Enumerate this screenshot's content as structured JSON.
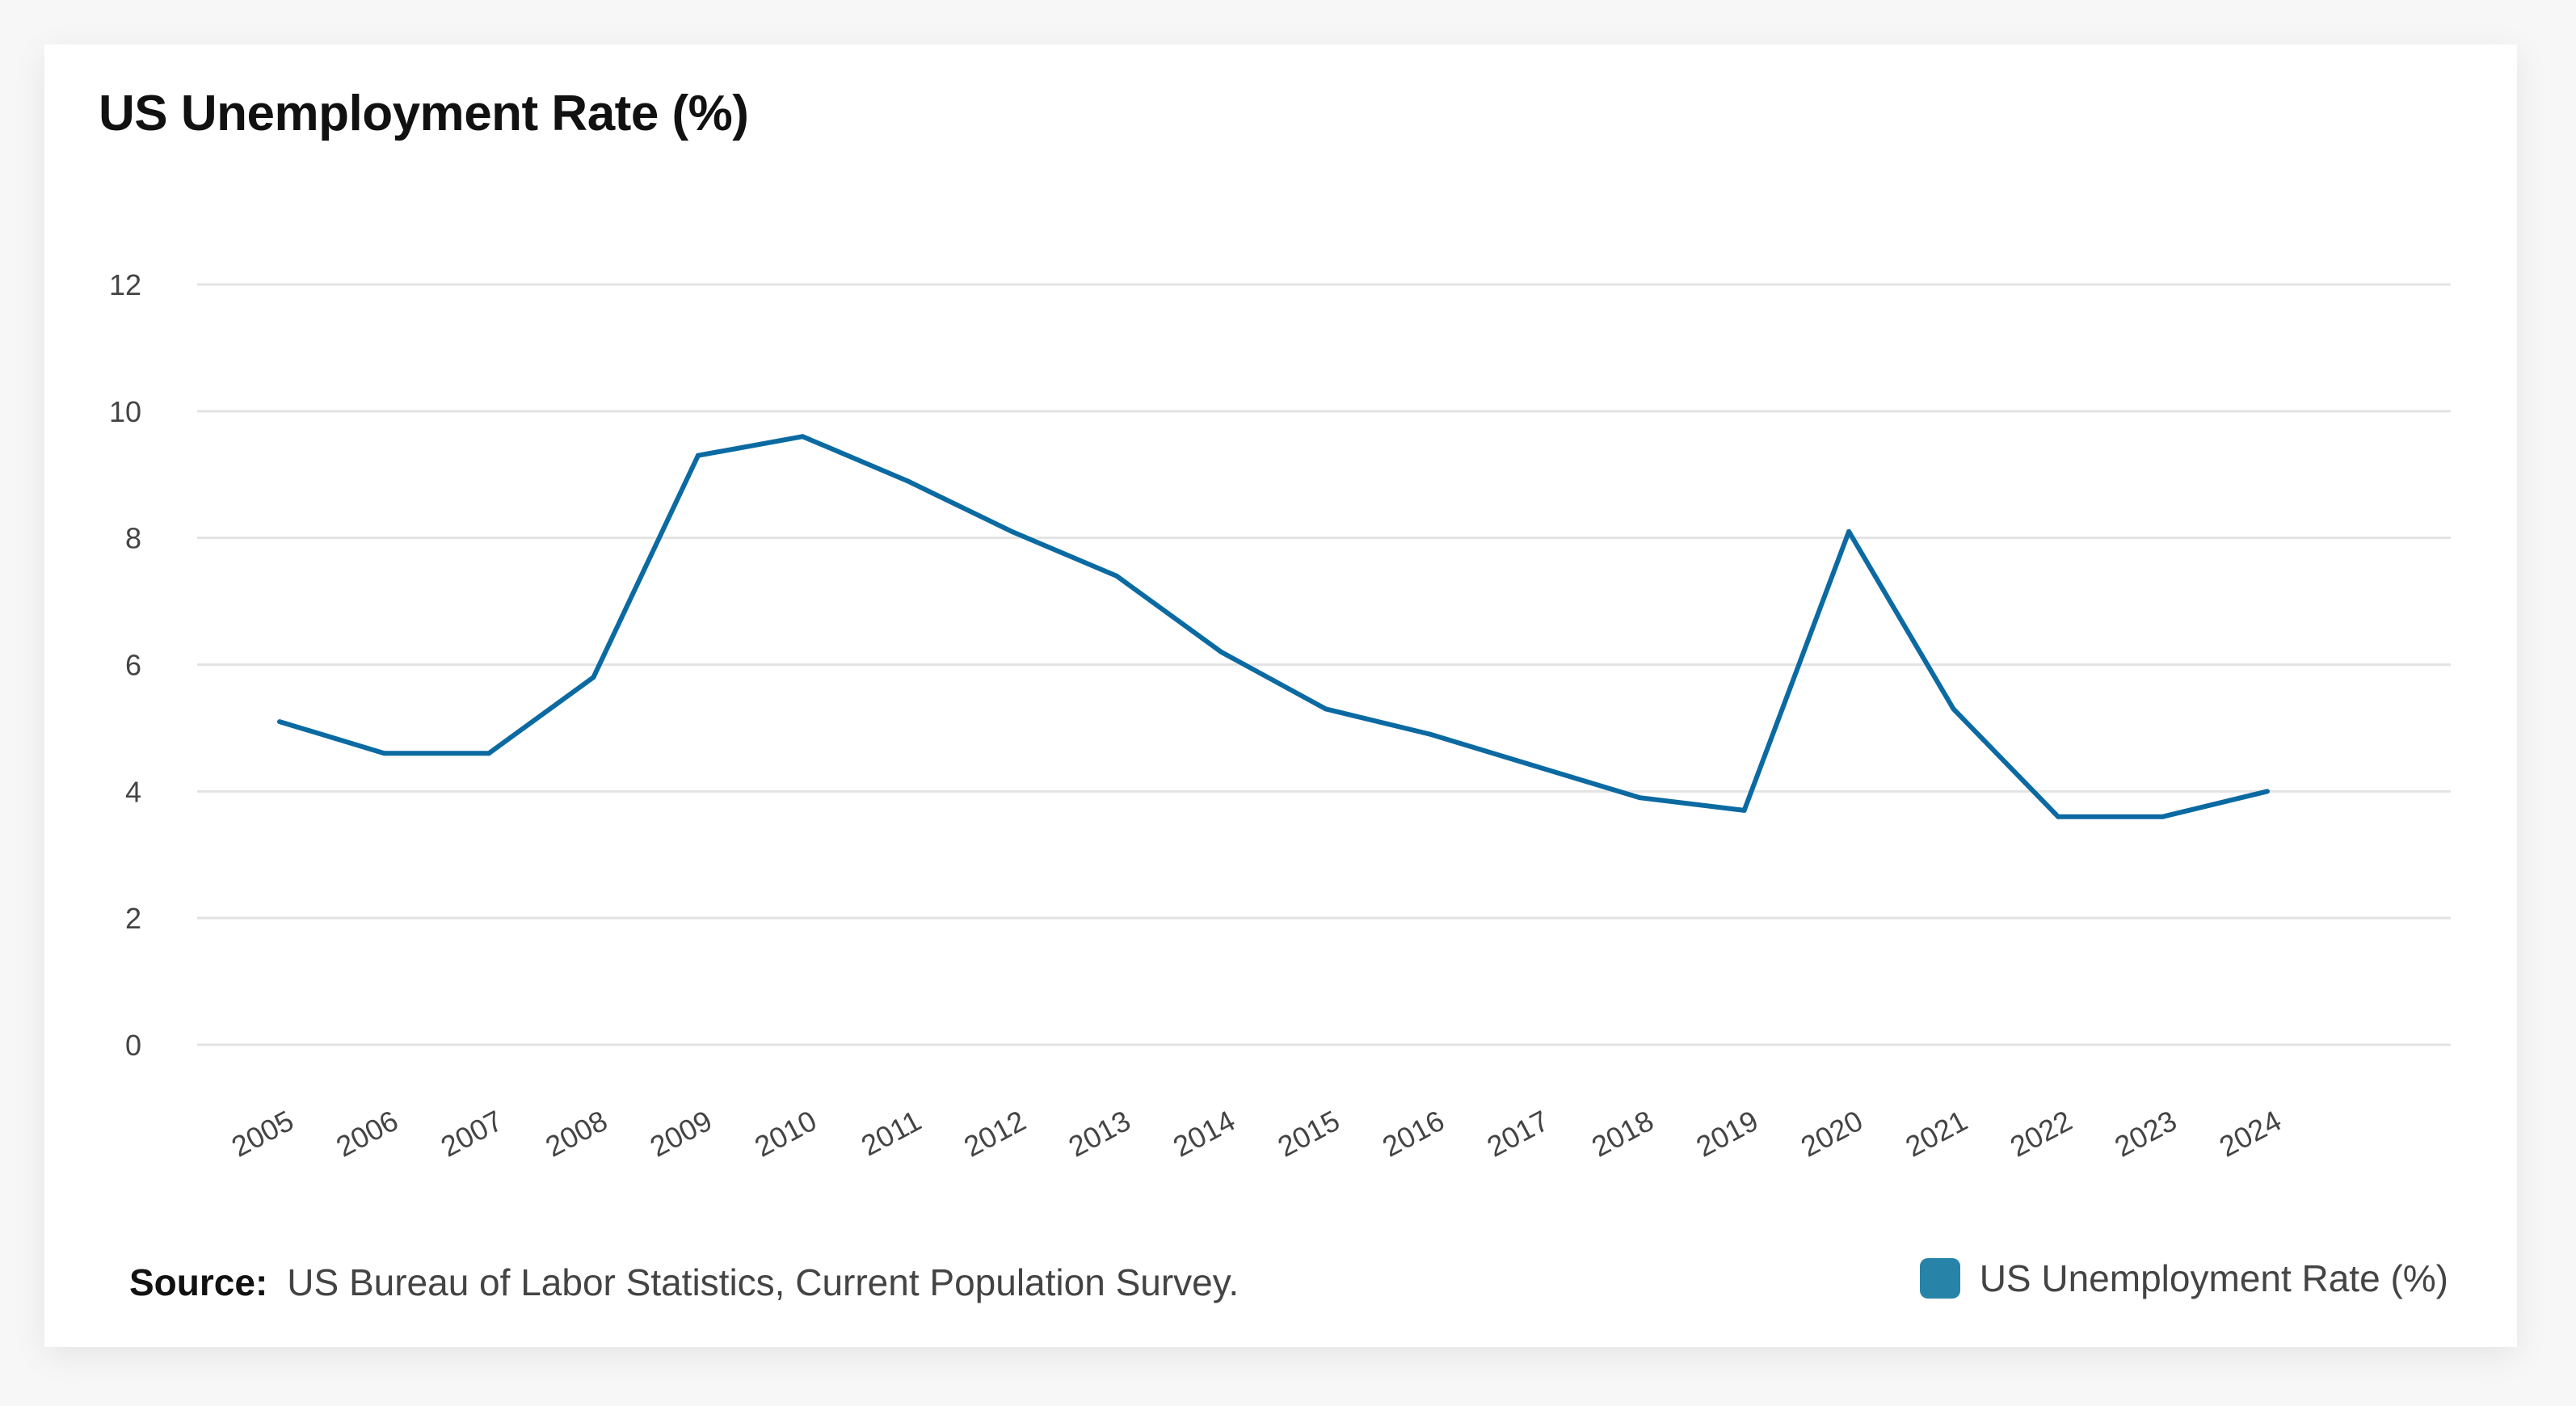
{
  "title": "US Unemployment Rate (%)",
  "source_label": "Source:",
  "source_text": "US Bureau of Labor Statistics, Current Population Survey.",
  "colors": {
    "line": "#0b6aa2",
    "legend": "#2783a8",
    "grid": "#e3e3e3"
  },
  "chart_data": {
    "type": "line",
    "title": "US Unemployment Rate (%)",
    "xlabel": "",
    "ylabel": "",
    "categories": [
      "2005",
      "2006",
      "2007",
      "2008",
      "2009",
      "2010",
      "2011",
      "2012",
      "2013",
      "2014",
      "2015",
      "2016",
      "2017",
      "2018",
      "2019",
      "2020",
      "2021",
      "2022",
      "2023",
      "2024"
    ],
    "series": [
      {
        "name": "US Unemployment Rate (%)",
        "values": [
          5.1,
          4.6,
          4.6,
          5.8,
          9.3,
          9.6,
          8.9,
          8.1,
          7.4,
          6.2,
          5.3,
          4.9,
          4.4,
          3.9,
          3.7,
          8.1,
          5.3,
          3.6,
          3.6,
          4.0
        ]
      }
    ],
    "ylim": [
      0,
      12
    ],
    "yticks": [
      0,
      2,
      4,
      6,
      8,
      10,
      12
    ],
    "grid": true,
    "legend": "bottom-right"
  }
}
